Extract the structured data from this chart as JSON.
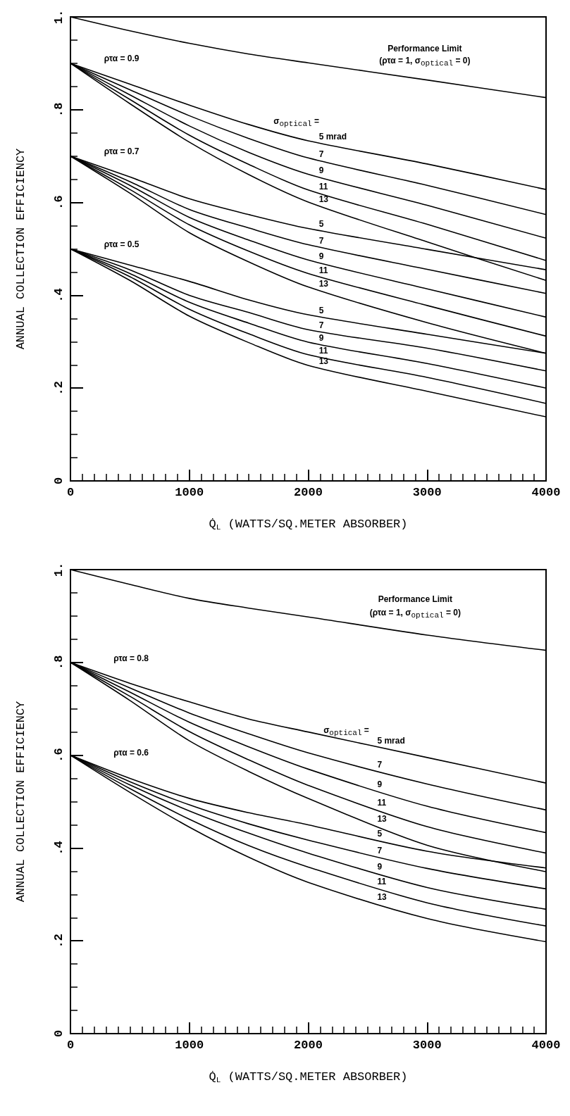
{
  "chart_data": [
    {
      "type": "line",
      "xlabel": "Q̇$_{L}$ (WATTS/SQ.METER ABSORBER)",
      "ylabel": "ANNUAL COLLECTION EFFICIENCY",
      "xlim": [
        0,
        4000
      ],
      "xticks": [
        0,
        1000,
        2000,
        3000,
        4000
      ],
      "ylim": [
        0,
        1
      ],
      "yticks": [
        0,
        {
          "value": 0.2,
          "label": ".2"
        },
        {
          "value": 0.4,
          "label": ".4"
        },
        {
          "value": 0.6,
          "label": ".6"
        },
        {
          "value": 0.8,
          "label": ".8"
        },
        {
          "value": 1,
          "label": "1."
        }
      ],
      "line_style": "solid",
      "x": [
        0,
        500,
        1000,
        1500,
        2000,
        3000,
        4000
      ],
      "series": [
        {
          "color": "#000000",
          "values": [
            1.0,
            0.97,
            0.943,
            0.92,
            0.901,
            0.864,
            0.826
          ]
        },
        {
          "name": "5 mrad",
          "color": "#000000",
          "values": [
            0.9,
            0.855,
            0.81,
            0.768,
            0.733,
            0.683,
            0.628
          ]
        },
        {
          "name": "7",
          "color": "#000000",
          "values": [
            0.9,
            0.843,
            0.787,
            0.738,
            0.696,
            0.637,
            0.574
          ]
        },
        {
          "name": "9",
          "color": "#000000",
          "values": [
            0.9,
            0.832,
            0.765,
            0.708,
            0.661,
            0.594,
            0.523
          ]
        },
        {
          "name": "11",
          "color": "#000000",
          "values": [
            0.9,
            0.822,
            0.745,
            0.682,
            0.627,
            0.553,
            0.475
          ]
        },
        {
          "name": "13",
          "color": "#000000",
          "values": [
            0.9,
            0.813,
            0.73,
            0.66,
            0.601,
            0.515,
            0.432
          ]
        },
        {
          "name": "5",
          "color": "#000000",
          "values": [
            0.7,
            0.655,
            0.608,
            0.574,
            0.544,
            0.499,
            0.455
          ]
        },
        {
          "name": "7",
          "color": "#000000",
          "values": [
            0.7,
            0.645,
            0.585,
            0.545,
            0.509,
            0.456,
            0.404
          ]
        },
        {
          "name": "9",
          "color": "#000000",
          "values": [
            0.7,
            0.637,
            0.568,
            0.519,
            0.476,
            0.414,
            0.353
          ]
        },
        {
          "name": "11",
          "color": "#000000",
          "values": [
            0.7,
            0.628,
            0.552,
            0.495,
            0.447,
            0.378,
            0.312
          ]
        },
        {
          "name": "13",
          "color": "#000000",
          "values": [
            0.7,
            0.62,
            0.535,
            0.472,
            0.418,
            0.341,
            0.275
          ]
        },
        {
          "name": "5",
          "color": "#000000",
          "values": [
            0.5,
            0.465,
            0.43,
            0.39,
            0.358,
            0.316,
            0.275
          ]
        },
        {
          "name": "7",
          "color": "#000000",
          "values": [
            0.5,
            0.455,
            0.4,
            0.363,
            0.326,
            0.286,
            0.237
          ]
        },
        {
          "name": "9",
          "color": "#000000",
          "values": [
            0.5,
            0.447,
            0.385,
            0.34,
            0.299,
            0.253,
            0.2
          ]
        },
        {
          "name": "11",
          "color": "#000000",
          "values": [
            0.5,
            0.44,
            0.37,
            0.317,
            0.272,
            0.223,
            0.167
          ]
        },
        {
          "name": "13",
          "color": "#000000",
          "values": [
            0.5,
            0.432,
            0.355,
            0.298,
            0.249,
            0.193,
            0.138
          ]
        }
      ],
      "annotations": [
        "Performance Limit",
        "(ρτα = 1, σ$_{optical}$ = 0)",
        "ρτα = 0.9",
        "ρτα = 0.7",
        "ρτα = 0.5",
        "σ$_{optical}$ ="
      ]
    },
    {
      "type": "line",
      "xlabel": "Q̇$_{L}$ (WATTS/SQ.METER ABSORBER)",
      "ylabel": "ANNUAL COLLECTION EFFICIENCY",
      "xlim": [
        0,
        4000
      ],
      "xticks": [
        0,
        1000,
        2000,
        3000,
        4000
      ],
      "ylim": [
        0,
        1
      ],
      "yticks": [
        0,
        {
          "value": 0.2,
          "label": ".2"
        },
        {
          "value": 0.4,
          "label": ".4"
        },
        {
          "value": 0.6,
          "label": ".6"
        },
        {
          "value": 0.8,
          "label": ".8"
        },
        {
          "value": 1,
          "label": "1."
        }
      ],
      "line_style": "solid",
      "x": [
        0,
        500,
        1000,
        1500,
        2000,
        3000,
        4000
      ],
      "series": [
        {
          "color": "#000000",
          "values": [
            1.0,
            0.968,
            0.938,
            0.917,
            0.898,
            0.859,
            0.826
          ]
        },
        {
          "name": "5 mrad",
          "color": "#000000",
          "values": [
            0.8,
            0.755,
            0.715,
            0.678,
            0.65,
            0.595,
            0.54
          ]
        },
        {
          "name": "7",
          "color": "#000000",
          "values": [
            0.8,
            0.745,
            0.691,
            0.646,
            0.605,
            0.538,
            0.482
          ]
        },
        {
          "name": "9",
          "color": "#000000",
          "values": [
            0.8,
            0.736,
            0.671,
            0.618,
            0.57,
            0.49,
            0.433
          ]
        },
        {
          "name": "11",
          "color": "#000000",
          "values": [
            0.8,
            0.727,
            0.651,
            0.59,
            0.535,
            0.446,
            0.389
          ]
        },
        {
          "name": "13",
          "color": "#000000",
          "values": [
            0.8,
            0.718,
            0.631,
            0.565,
            0.507,
            0.406,
            0.349
          ]
        },
        {
          "name": "5",
          "color": "#000000",
          "values": [
            0.6,
            0.55,
            0.507,
            0.476,
            0.45,
            0.393,
            0.357
          ]
        },
        {
          "name": "7",
          "color": "#000000",
          "values": [
            0.6,
            0.543,
            0.493,
            0.452,
            0.417,
            0.356,
            0.312
          ]
        },
        {
          "name": "9",
          "color": "#000000",
          "values": [
            0.6,
            0.536,
            0.48,
            0.432,
            0.389,
            0.315,
            0.268
          ]
        },
        {
          "name": "11",
          "color": "#000000",
          "values": [
            0.6,
            0.528,
            0.462,
            0.405,
            0.359,
            0.282,
            0.232
          ]
        },
        {
          "name": "13",
          "color": "#000000",
          "values": [
            0.6,
            0.52,
            0.445,
            0.38,
            0.326,
            0.248,
            0.198
          ]
        }
      ],
      "annotations": [
        "Performance Limit",
        "(ρτα = 1, σ$_{optical}$ = 0)",
        "ρτα = 0.8",
        "ρτα = 0.6",
        "σ$_{optical}$ ="
      ]
    }
  ]
}
